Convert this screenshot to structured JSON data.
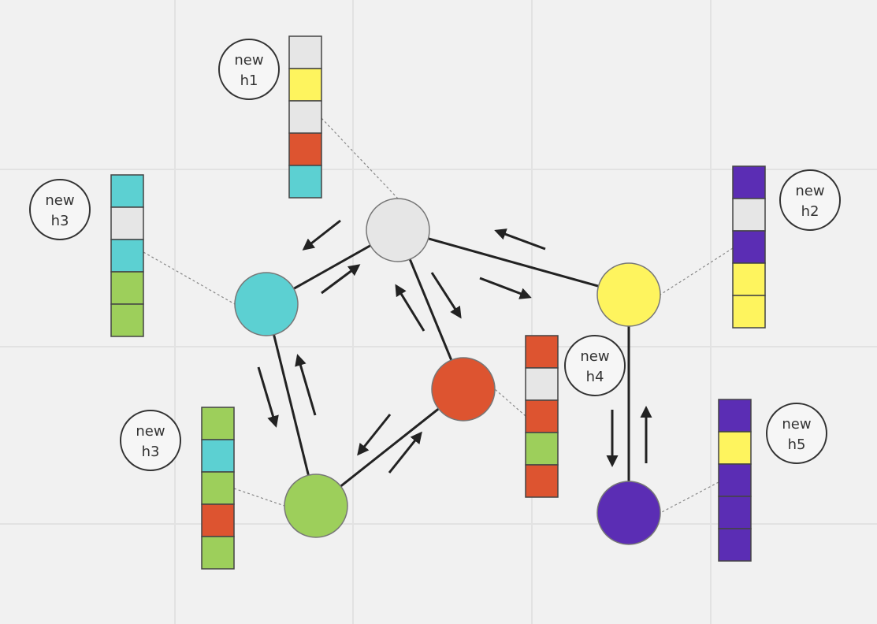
{
  "colors": {
    "gray": "#e6e6e6",
    "yellow": "#fef45e",
    "red": "#dd5430",
    "cyan": "#5cd0d2",
    "green": "#9dcf5b",
    "purple": "#5b2db4",
    "edge": "#222222",
    "background": "#f1f1f1"
  },
  "nodes": [
    {
      "id": "gray",
      "color": "gray"
    },
    {
      "id": "cyan",
      "color": "cyan"
    },
    {
      "id": "yellow",
      "color": "yellow"
    },
    {
      "id": "red",
      "color": "red"
    },
    {
      "id": "green",
      "color": "green"
    },
    {
      "id": "purple",
      "color": "purple"
    }
  ],
  "edges": [
    [
      "gray",
      "cyan"
    ],
    [
      "gray",
      "yellow"
    ],
    [
      "gray",
      "red"
    ],
    [
      "cyan",
      "green"
    ],
    [
      "green",
      "red"
    ],
    [
      "yellow",
      "purple"
    ]
  ],
  "vectors": [
    {
      "node": "gray",
      "label_line1": "new",
      "label_line2": "h1",
      "cells": [
        "gray",
        "yellow",
        "gray",
        "red",
        "cyan"
      ]
    },
    {
      "node": "cyan",
      "label_line1": "new",
      "label_line2": "h3",
      "cells": [
        "cyan",
        "gray",
        "cyan",
        "green",
        "green"
      ]
    },
    {
      "node": "yellow",
      "label_line1": "new",
      "label_line2": "h2",
      "cells": [
        "purple",
        "gray",
        "purple",
        "yellow",
        "yellow"
      ]
    },
    {
      "node": "red",
      "label_line1": "new",
      "label_line2": "h4",
      "cells": [
        "red",
        "gray",
        "red",
        "green",
        "red"
      ]
    },
    {
      "node": "green",
      "label_line1": "new",
      "label_line2": "h3",
      "cells": [
        "green",
        "cyan",
        "green",
        "red",
        "green"
      ]
    },
    {
      "node": "purple",
      "label_line1": "new",
      "label_line2": "h5",
      "cells": [
        "purple",
        "yellow",
        "purple",
        "purple",
        "purple"
      ]
    }
  ]
}
